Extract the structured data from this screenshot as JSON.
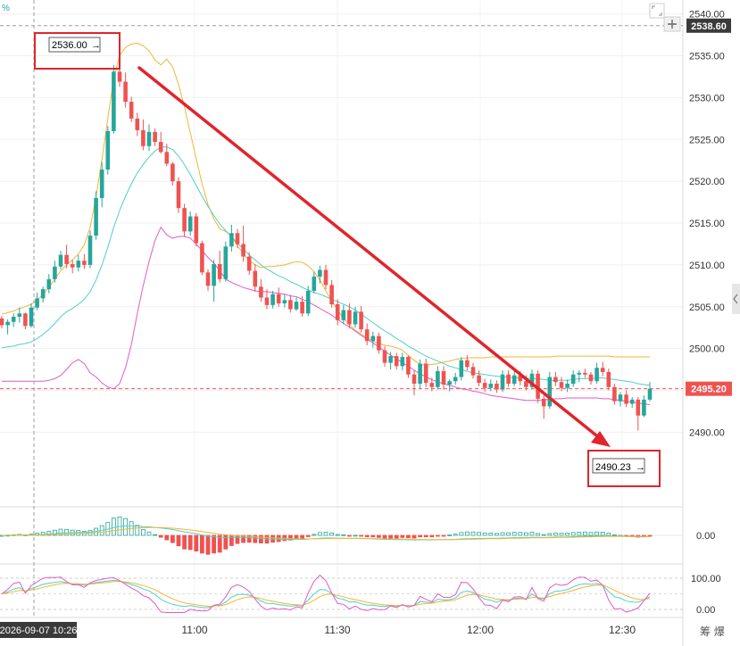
{
  "chart_data": {
    "type": "candlestick",
    "symbol_pct_label": "%",
    "price_axis": {
      "ticks": [
        "2540.00",
        "2535.00",
        "2530.00",
        "2525.00",
        "2520.00",
        "2515.00",
        "2510.00",
        "2505.00",
        "2500.00",
        "2495.00",
        "2490.00"
      ],
      "ylim": [
        2484.5,
        2540.6
      ]
    },
    "time_axis": {
      "labels": [
        "11:00",
        "11:30",
        "12:00",
        "12:30"
      ],
      "crosshair_time": "2026-09-07 10:26"
    },
    "crosshair_price": "2538.60",
    "last_price": "2495.20",
    "colors": {
      "up": "#26a69a",
      "down": "#ef5350",
      "bb_upper": "#f5b433",
      "bb_mid": "#4fd1c5",
      "bb_lower": "#e15bc8",
      "arrow": "#e0252c",
      "last_tag": "#ef5350"
    },
    "annotations": {
      "high": "2536.00",
      "low": "2490.23"
    },
    "macd": {
      "zero_label": "0.00"
    },
    "kdj": {
      "upper_label": "100.00",
      "lower_label": "0.00"
    },
    "watermark": "筹 爆",
    "candles": [
      [
        2503.6,
        2503.9,
        2502.4,
        2502.8
      ],
      [
        2502.8,
        2503.5,
        2501.7,
        2503.2
      ],
      [
        2503.2,
        2504.2,
        2502.6,
        2503.8
      ],
      [
        2503.8,
        2504.9,
        2503.1,
        2504.2
      ],
      [
        2504.2,
        2504.3,
        2502.3,
        2502.7
      ],
      [
        2502.7,
        2505.4,
        2502.5,
        2504.9
      ],
      [
        2504.9,
        2506.7,
        2504.6,
        2506.0
      ],
      [
        2506.0,
        2507.4,
        2505.5,
        2507.1
      ],
      [
        2507.1,
        2508.9,
        2506.6,
        2508.3
      ],
      [
        2508.3,
        2510.5,
        2507.9,
        2509.8
      ],
      [
        2509.8,
        2511.7,
        2509.5,
        2511.2
      ],
      [
        2511.2,
        2512.4,
        2509.6,
        2510.1
      ],
      [
        2510.1,
        2510.6,
        2509.0,
        2509.7
      ],
      [
        2509.7,
        2511.2,
        2509.2,
        2510.5
      ],
      [
        2510.5,
        2511.3,
        2509.5,
        2510.0
      ],
      [
        2510.0,
        2514.1,
        2509.6,
        2513.5
      ],
      [
        2513.5,
        2518.8,
        2513.0,
        2518.0
      ],
      [
        2518.0,
        2522.3,
        2516.9,
        2521.4
      ],
      [
        2521.4,
        2526.6,
        2520.8,
        2526.0
      ],
      [
        2526.0,
        2533.9,
        2525.7,
        2533.1
      ],
      [
        2533.1,
        2536.0,
        2531.3,
        2531.9
      ],
      [
        2531.9,
        2533.0,
        2528.8,
        2529.5
      ],
      [
        2529.5,
        2530.1,
        2527.1,
        2527.5
      ],
      [
        2527.5,
        2528.2,
        2525.4,
        2526.1
      ],
      [
        2526.1,
        2527.4,
        2523.7,
        2524.2
      ],
      [
        2524.2,
        2526.8,
        2523.6,
        2525.9
      ],
      [
        2525.9,
        2526.3,
        2524.2,
        2524.7
      ],
      [
        2524.7,
        2525.9,
        2523.3,
        2523.5
      ],
      [
        2523.5,
        2524.5,
        2521.8,
        2522.1
      ],
      [
        2522.1,
        2522.3,
        2519.5,
        2520.0
      ],
      [
        2520.0,
        2520.5,
        2516.2,
        2516.8
      ],
      [
        2516.8,
        2517.3,
        2513.4,
        2514.0
      ],
      [
        2514.0,
        2516.4,
        2513.5,
        2515.8
      ],
      [
        2515.8,
        2516.2,
        2512.2,
        2512.6
      ],
      [
        2512.6,
        2512.9,
        2508.8,
        2509.1
      ],
      [
        2509.1,
        2509.5,
        2506.9,
        2507.5
      ],
      [
        2507.5,
        2510.6,
        2505.6,
        2510.1
      ],
      [
        2510.1,
        2511.7,
        2507.9,
        2508.3
      ],
      [
        2508.3,
        2512.8,
        2508.0,
        2512.2
      ],
      [
        2512.2,
        2514.8,
        2511.6,
        2513.8
      ],
      [
        2513.8,
        2514.3,
        2512.0,
        2512.5
      ],
      [
        2512.5,
        2514.7,
        2510.4,
        2511.0
      ],
      [
        2511.0,
        2511.5,
        2508.8,
        2509.3
      ],
      [
        2509.3,
        2510.1,
        2506.8,
        2507.4
      ],
      [
        2507.4,
        2508.3,
        2505.6,
        2506.1
      ],
      [
        2506.1,
        2507.1,
        2504.7,
        2505.2
      ],
      [
        2505.2,
        2506.9,
        2504.8,
        2506.5
      ],
      [
        2506.5,
        2507.3,
        2505.0,
        2505.4
      ],
      [
        2505.4,
        2506.5,
        2504.9,
        2505.8
      ],
      [
        2505.8,
        2506.4,
        2504.3,
        2504.7
      ],
      [
        2504.7,
        2506.1,
        2504.5,
        2505.6
      ],
      [
        2505.6,
        2506.3,
        2503.8,
        2504.2
      ],
      [
        2504.2,
        2507.5,
        2503.9,
        2506.9
      ],
      [
        2506.9,
        2509.2,
        2506.6,
        2508.6
      ],
      [
        2508.6,
        2509.9,
        2507.8,
        2509.4
      ],
      [
        2509.4,
        2510.0,
        2507.1,
        2507.6
      ],
      [
        2507.6,
        2508.2,
        2504.9,
        2505.3
      ],
      [
        2505.3,
        2505.9,
        2502.8,
        2503.4
      ],
      [
        2503.4,
        2505.2,
        2502.9,
        2504.6
      ],
      [
        2504.6,
        2505.4,
        2502.4,
        2502.9
      ],
      [
        2502.9,
        2505.0,
        2502.5,
        2504.4
      ],
      [
        2504.4,
        2505.1,
        2501.9,
        2502.3
      ],
      [
        2502.3,
        2503.0,
        2500.4,
        2500.9
      ],
      [
        2500.9,
        2502.0,
        2500.1,
        2501.5
      ],
      [
        2501.5,
        2501.9,
        2499.4,
        2499.8
      ],
      [
        2499.8,
        2500.3,
        2497.8,
        2498.3
      ],
      [
        2498.3,
        2499.6,
        2497.5,
        2499.1
      ],
      [
        2499.1,
        2499.5,
        2497.5,
        2497.9
      ],
      [
        2497.9,
        2499.5,
        2497.4,
        2499.0
      ],
      [
        2499.0,
        2499.2,
        2496.5,
        2496.9
      ],
      [
        2496.9,
        2497.4,
        2494.4,
        2495.8
      ],
      [
        2495.8,
        2498.7,
        2495.2,
        2498.2
      ],
      [
        2498.2,
        2498.8,
        2495.4,
        2495.9
      ],
      [
        2495.9,
        2496.5,
        2494.9,
        2495.4
      ],
      [
        2495.4,
        2497.9,
        2495.1,
        2497.3
      ],
      [
        2497.3,
        2497.9,
        2495.1,
        2495.7
      ],
      [
        2495.7,
        2496.3,
        2494.9,
        2496.1
      ],
      [
        2496.1,
        2497.1,
        2495.7,
        2496.6
      ],
      [
        2496.6,
        2499.0,
        2496.2,
        2498.6
      ],
      [
        2498.6,
        2499.2,
        2497.4,
        2497.8
      ],
      [
        2497.8,
        2498.3,
        2496.4,
        2496.8
      ],
      [
        2496.8,
        2497.4,
        2495.5,
        2495.9
      ],
      [
        2495.9,
        2496.4,
        2494.8,
        2495.3
      ],
      [
        2495.3,
        2496.3,
        2494.9,
        2495.8
      ],
      [
        2495.8,
        2496.2,
        2494.7,
        2495.1
      ],
      [
        2495.1,
        2497.4,
        2494.8,
        2496.9
      ],
      [
        2496.9,
        2497.4,
        2495.4,
        2495.8
      ],
      [
        2495.8,
        2497.3,
        2495.5,
        2496.8
      ],
      [
        2496.8,
        2497.3,
        2495.6,
        2496.1
      ],
      [
        2496.1,
        2496.8,
        2495.0,
        2495.4
      ],
      [
        2495.4,
        2497.5,
        2495.1,
        2497.0
      ],
      [
        2497.0,
        2497.4,
        2493.5,
        2494.0
      ],
      [
        2494.0,
        2494.4,
        2491.6,
        2493.1
      ],
      [
        2493.1,
        2497.2,
        2492.8,
        2496.6
      ],
      [
        2496.6,
        2497.2,
        2495.5,
        2496.0
      ],
      [
        2496.0,
        2496.6,
        2494.9,
        2495.3
      ],
      [
        2495.3,
        2496.3,
        2494.8,
        2495.8
      ],
      [
        2495.8,
        2497.4,
        2495.4,
        2496.9
      ],
      [
        2496.9,
        2497.4,
        2496.0,
        2497.1
      ],
      [
        2497.1,
        2497.6,
        2496.5,
        2496.9
      ],
      [
        2496.9,
        2497.2,
        2495.7,
        2496.1
      ],
      [
        2496.1,
        2498.3,
        2495.8,
        2497.7
      ],
      [
        2497.7,
        2498.4,
        2496.7,
        2497.2
      ],
      [
        2497.2,
        2497.6,
        2495.0,
        2495.4
      ],
      [
        2495.4,
        2495.8,
        2493.3,
        2493.7
      ],
      [
        2493.7,
        2494.8,
        2493.1,
        2494.5
      ],
      [
        2494.5,
        2495.0,
        2493.0,
        2493.4
      ],
      [
        2493.4,
        2494.2,
        2492.9,
        2493.9
      ],
      [
        2493.9,
        2494.2,
        2490.2,
        2492.0
      ],
      [
        2492.0,
        2494.4,
        2491.8,
        2493.9
      ],
      [
        2493.9,
        2496.0,
        2493.7,
        2495.2
      ]
    ],
    "bb_upper": [
      2504.1,
      2504.3,
      2504.5,
      2504.8,
      2505.0,
      2505.3,
      2505.8,
      2506.5,
      2507.3,
      2508.3,
      2509.3,
      2510.0,
      2510.6,
      2511.3,
      2512.4,
      2514.5,
      2518.2,
      2522.6,
      2527.5,
      2532.3,
      2535.0,
      2536.0,
      2536.4,
      2536.5,
      2536.2,
      2535.6,
      2534.5,
      2533.9,
      2534.6,
      2533.7,
      2531.6,
      2528.9,
      2525.8,
      2522.7,
      2519.7,
      2517.2,
      2515.5,
      2514.3,
      2514.0,
      2513.4,
      2512.3,
      2511.3,
      2510.5,
      2510.0,
      2509.7,
      2509.8,
      2509.8,
      2509.9,
      2510.0,
      2510.2,
      2510.4,
      2510.3,
      2509.9,
      2509.2,
      2508.2,
      2506.9,
      2505.7,
      2504.6,
      2503.6,
      2502.9,
      2502.2,
      2501.7,
      2501.3,
      2500.9,
      2500.6,
      2500.4,
      2500.3,
      2500.1,
      2499.8,
      2499.2,
      2498.6,
      2498.1,
      2498.0,
      2498.1,
      2498.2,
      2498.4,
      2498.5,
      2498.7,
      2498.8,
      2498.9,
      2498.9,
      2498.9,
      2498.9,
      2499.0,
      2499.0,
      2499.0,
      2499.0,
      2499.0,
      2499.0,
      2499.0,
      2499.0,
      2499.0,
      2499.0,
      2499.0,
      2499.1,
      2499.1,
      2499.1,
      2499.1,
      2499.1,
      2499.1,
      2499.1,
      2499.1,
      2499.1,
      2499.1,
      2499.0,
      2499.0,
      2499.0,
      2499.0,
      2499.0,
      2499.0,
      2499.0
    ],
    "bb_mid": [
      2500.1,
      2500.2,
      2500.3,
      2500.5,
      2500.6,
      2500.8,
      2501.2,
      2501.7,
      2502.3,
      2503.0,
      2503.8,
      2504.4,
      2504.8,
      2505.3,
      2505.9,
      2506.8,
      2508.2,
      2510.0,
      2512.1,
      2514.5,
      2516.5,
      2518.2,
      2519.7,
      2521.0,
      2522.0,
      2522.9,
      2523.6,
      2524.1,
      2524.1,
      2523.8,
      2523.0,
      2522.0,
      2520.8,
      2519.5,
      2518.2,
      2517.0,
      2515.9,
      2514.9,
      2514.1,
      2513.4,
      2512.6,
      2511.9,
      2511.2,
      2510.6,
      2510.0,
      2509.5,
      2509.1,
      2508.7,
      2508.4,
      2508.0,
      2507.7,
      2507.3,
      2507.0,
      2506.7,
      2506.5,
      2506.2,
      2505.9,
      2505.6,
      2505.3,
      2505.0,
      2504.6,
      2504.1,
      2503.6,
      2503.1,
      2502.6,
      2502.1,
      2501.7,
      2501.2,
      2500.8,
      2500.3,
      2499.9,
      2499.5,
      2499.1,
      2498.8,
      2498.5,
      2498.2,
      2497.9,
      2497.7,
      2497.5,
      2497.3,
      2497.1,
      2497.0,
      2496.9,
      2496.8,
      2496.7,
      2496.6,
      2496.6,
      2496.5,
      2496.5,
      2496.5,
      2496.4,
      2496.4,
      2496.3,
      2496.2,
      2496.2,
      2496.2,
      2496.2,
      2496.3,
      2496.4,
      2496.4,
      2496.4,
      2496.5,
      2496.5,
      2496.4,
      2496.3,
      2496.2,
      2496.1,
      2496.0,
      2495.8,
      2495.7,
      2495.6
    ],
    "bb_lower": [
      2496.1,
      2496.1,
      2496.1,
      2496.1,
      2496.1,
      2496.1,
      2496.1,
      2496.1,
      2496.2,
      2496.4,
      2496.8,
      2497.5,
      2498.3,
      2498.7,
      2498.2,
      2497.1,
      2496.6,
      2495.9,
      2495.4,
      2495.2,
      2495.8,
      2497.7,
      2500.5,
      2504.2,
      2507.5,
      2510.4,
      2512.9,
      2514.5,
      2513.6,
      2513.2,
      2513.4,
      2513.4,
      2513.2,
      2512.5,
      2511.7,
      2510.9,
      2510.2,
      2509.3,
      2508.3,
      2507.9,
      2507.6,
      2507.3,
      2507.1,
      2506.9,
      2506.8,
      2506.8,
      2506.7,
      2506.6,
      2506.5,
      2506.3,
      2506.2,
      2505.9,
      2505.6,
      2505.2,
      2504.8,
      2504.4,
      2504.0,
      2503.5,
      2503.0,
      2502.6,
      2502.1,
      2501.6,
      2501.1,
      2500.7,
      2500.2,
      2499.7,
      2499.2,
      2498.8,
      2498.3,
      2497.9,
      2497.4,
      2497.0,
      2496.6,
      2496.3,
      2496.0,
      2495.8,
      2495.6,
      2495.4,
      2495.2,
      2495.1,
      2494.9,
      2494.8,
      2494.6,
      2494.4,
      2494.3,
      2494.2,
      2494.1,
      2494.0,
      2493.9,
      2493.8,
      2493.8,
      2493.8,
      2493.9,
      2493.9,
      2494.0,
      2494.0,
      2494.1,
      2494.1,
      2494.1,
      2494.1,
      2494.1,
      2494.1,
      2494.0,
      2494.0,
      2493.9,
      2493.8,
      2493.7,
      2493.6,
      2493.5,
      2493.4,
      2493.3
    ]
  }
}
